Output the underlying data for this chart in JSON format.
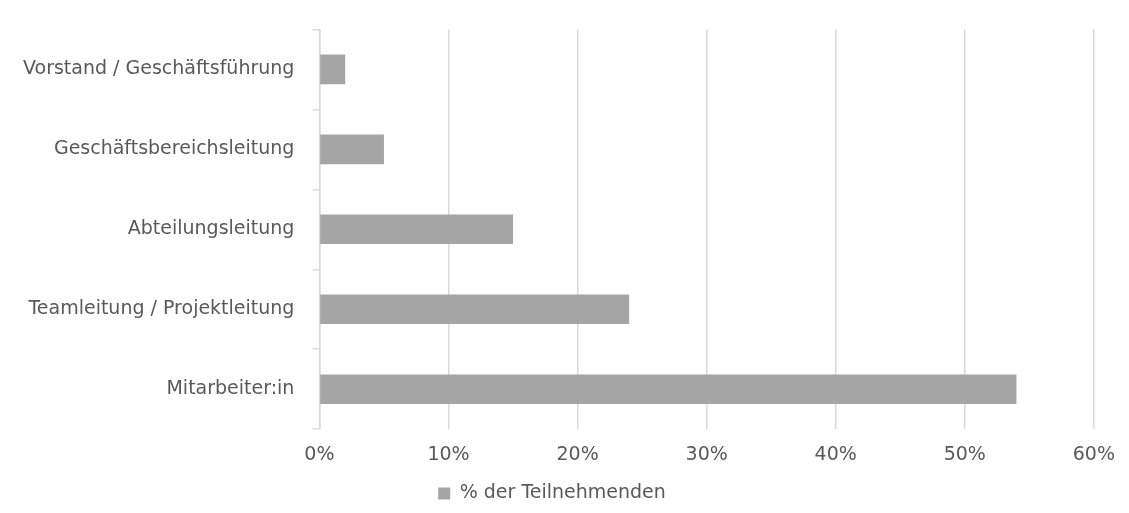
{
  "chart_data": {
    "type": "bar",
    "orientation": "horizontal",
    "categories": [
      "Vorstand / Geschäftsführung",
      "Geschäftsbereichsleitung",
      "Abteilungsleitung",
      "Teamleitung / Projektleitung",
      "Mitarbeiter:in"
    ],
    "series": [
      {
        "name": "% der Teilnehmenden",
        "color": "#a5a5a5",
        "values": [
          2,
          5,
          15,
          24,
          54
        ]
      }
    ],
    "xlim": [
      0,
      60
    ],
    "xticks": [
      {
        "value": 0,
        "label": "0%"
      },
      {
        "value": 10,
        "label": "10%"
      },
      {
        "value": 20,
        "label": "20%"
      },
      {
        "value": 30,
        "label": "30%"
      },
      {
        "value": 40,
        "label": "40%"
      },
      {
        "value": 50,
        "label": "50%"
      },
      {
        "value": 60,
        "label": "60%"
      }
    ],
    "grid": "x",
    "legend": "bottom"
  }
}
